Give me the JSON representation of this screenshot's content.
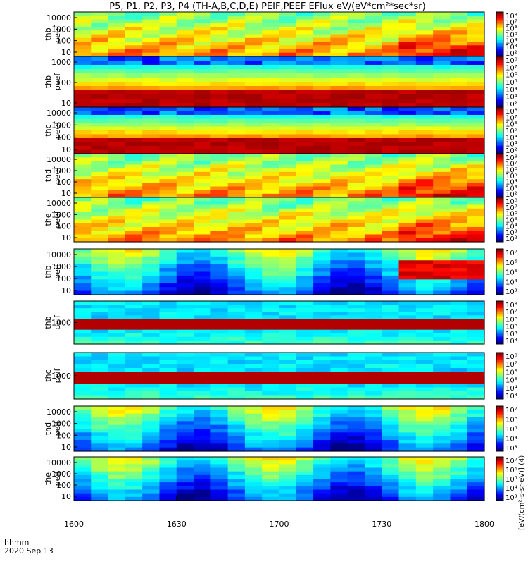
{
  "title": "P5, P1, P2, P3, P4 (TH-A,B,C,D,E) PEIF,PEEF EFlux eV/(eV*cm²*sec*sr)",
  "time_axis": {
    "unit_label": "hhmm",
    "date_label": "2020 Sep 13",
    "ticks": [
      "1600",
      "1630",
      "1700",
      "1730",
      "1800"
    ]
  },
  "colorbar_label": "[eV/(cm²-s-sr-eV)] (4)",
  "chart_data": [
    {
      "type": "heatmap",
      "probe": "thb",
      "instrument": "peef",
      "label": [
        "thb",
        "peef"
      ],
      "y_ticks": [
        "10000",
        "1000",
        "100",
        "10"
      ],
      "log": true,
      "ylim": [
        5,
        30000
      ],
      "cbar_ticks": [
        "10⁸",
        "10⁷",
        "10⁶",
        "10⁵",
        "10⁴",
        "10³",
        "10²"
      ]
    },
    {
      "type": "heatmap",
      "probe": "thb",
      "instrument": "peef",
      "label": [
        "thb",
        "peef"
      ],
      "y_ticks": [
        "1000",
        "100",
        "10"
      ],
      "log": true,
      "ylim": [
        5,
        3000
      ],
      "cbar_ticks": [
        "10⁸",
        "10⁷",
        "10⁶",
        "10⁵",
        "10⁴",
        "10³",
        "10²"
      ]
    },
    {
      "type": "heatmap",
      "probe": "thc",
      "instrument": "peef",
      "label": [
        "thc",
        "peef"
      ],
      "y_ticks": [
        "10000",
        "1000",
        "100",
        "10"
      ],
      "log": true,
      "ylim": [
        5,
        12000
      ],
      "cbar_ticks": [
        "10⁸",
        "10⁷",
        "10⁶",
        "10⁵",
        "10⁴",
        "10³",
        "10²"
      ]
    },
    {
      "type": "heatmap",
      "probe": "thd",
      "instrument": "peef",
      "label": [
        "thd",
        "peef"
      ],
      "y_ticks": [
        "10000",
        "1000",
        "100",
        "10"
      ],
      "log": true,
      "ylim": [
        5,
        30000
      ],
      "cbar_ticks": [
        "10⁸",
        "10⁷",
        "10⁶",
        "10⁵",
        "10⁴",
        "10³",
        "10²"
      ]
    },
    {
      "type": "heatmap",
      "probe": "the",
      "instrument": "peef",
      "label": [
        "the",
        "peef"
      ],
      "y_ticks": [
        "10000",
        "1000",
        "100",
        "10"
      ],
      "log": true,
      "ylim": [
        5,
        30000
      ],
      "cbar_ticks": [
        "10⁸",
        "10⁷",
        "10⁶",
        "10⁵",
        "10⁴",
        "10³",
        "10²"
      ]
    },
    {
      "type": "heatmap",
      "probe": "thb",
      "instrument": "peif",
      "label": [
        "thb",
        "peif"
      ],
      "y_ticks": [
        "10000",
        "1000",
        "100",
        "10"
      ],
      "log": true,
      "ylim": [
        5,
        30000
      ],
      "cbar_ticks": [
        "10⁷",
        "10⁶",
        "10⁵",
        "10⁴",
        "10³"
      ]
    },
    {
      "type": "heatmap",
      "probe": "thb",
      "instrument": "peif",
      "label": [
        "thb",
        "peif"
      ],
      "y_ticks": [
        "1000"
      ],
      "log": true,
      "ylim": [
        5,
        30000
      ],
      "cbar_ticks": [
        "10⁸",
        "10⁷",
        "10⁶",
        "10⁵",
        "10⁴",
        "10³"
      ]
    },
    {
      "type": "heatmap",
      "probe": "thc",
      "instrument": "peif",
      "label": [
        "thc",
        "peif"
      ],
      "y_ticks": [
        "1000"
      ],
      "log": true,
      "ylim": [
        5,
        30000
      ],
      "cbar_ticks": [
        "10⁸",
        "10⁷",
        "10⁶",
        "10⁵",
        "10⁴",
        "10³"
      ]
    },
    {
      "type": "heatmap",
      "probe": "thd",
      "instrument": "peif",
      "label": [
        "thd",
        "peif"
      ],
      "y_ticks": [
        "10000",
        "1000",
        "100",
        "10"
      ],
      "log": true,
      "ylim": [
        5,
        30000
      ],
      "cbar_ticks": [
        "10⁷",
        "10⁶",
        "10⁵",
        "10⁴",
        "10³"
      ]
    },
    {
      "type": "heatmap",
      "probe": "the",
      "instrument": "peif",
      "label": [
        "the",
        "peif"
      ],
      "y_ticks": [
        "10000",
        "1000",
        "100",
        "10"
      ],
      "log": true,
      "ylim": [
        5,
        30000
      ],
      "cbar_ticks": [
        "10⁷",
        "10⁶",
        "10⁵",
        "10⁴",
        "10³"
      ]
    }
  ]
}
